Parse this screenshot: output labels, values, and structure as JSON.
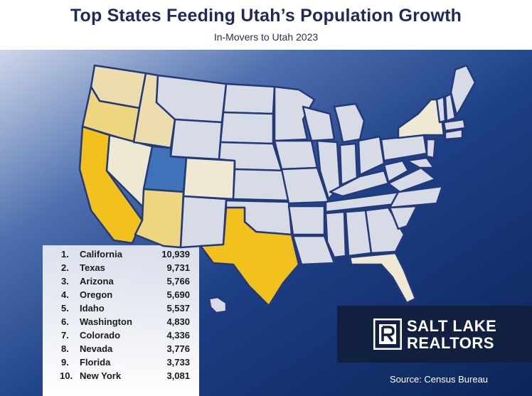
{
  "header": {
    "title": "Top States Feeding Utah’s Population Growth",
    "subtitle": "In-Movers to Utah 2023"
  },
  "colors": {
    "highlight_utah": "#3f72b8",
    "top_tier": "#f2c11d",
    "mid_tier": "#eed67f",
    "low_tier": "#ecdcae",
    "lowest_tier": "#efe9d4",
    "other_states": "#d6dbe6",
    "state_border": "#24397a",
    "background_dark": "#0f2a66"
  },
  "ranking": {
    "items": [
      {
        "rank": "1.",
        "state": "California",
        "value": "10,939"
      },
      {
        "rank": "2.",
        "state": "Texas",
        "value": "9,731"
      },
      {
        "rank": "3.",
        "state": "Arizona",
        "value": "5,766"
      },
      {
        "rank": "4.",
        "state": "Oregon",
        "value": "5,690"
      },
      {
        "rank": "5.",
        "state": "Idaho",
        "value": "5,537"
      },
      {
        "rank": "6.",
        "state": "Washington",
        "value": "4,830"
      },
      {
        "rank": "7.",
        "state": "Colorado",
        "value": "4,336"
      },
      {
        "rank": "8.",
        "state": "Nevada",
        "value": "3,776"
      },
      {
        "rank": "9.",
        "state": "Florida",
        "value": "3,733"
      },
      {
        "rank": "10.",
        "state": "New York",
        "value": "3,081"
      }
    ]
  },
  "logo": {
    "line1": "SALT LAKE",
    "line2": "REALTORS"
  },
  "source": "Source: Census Bureau"
}
